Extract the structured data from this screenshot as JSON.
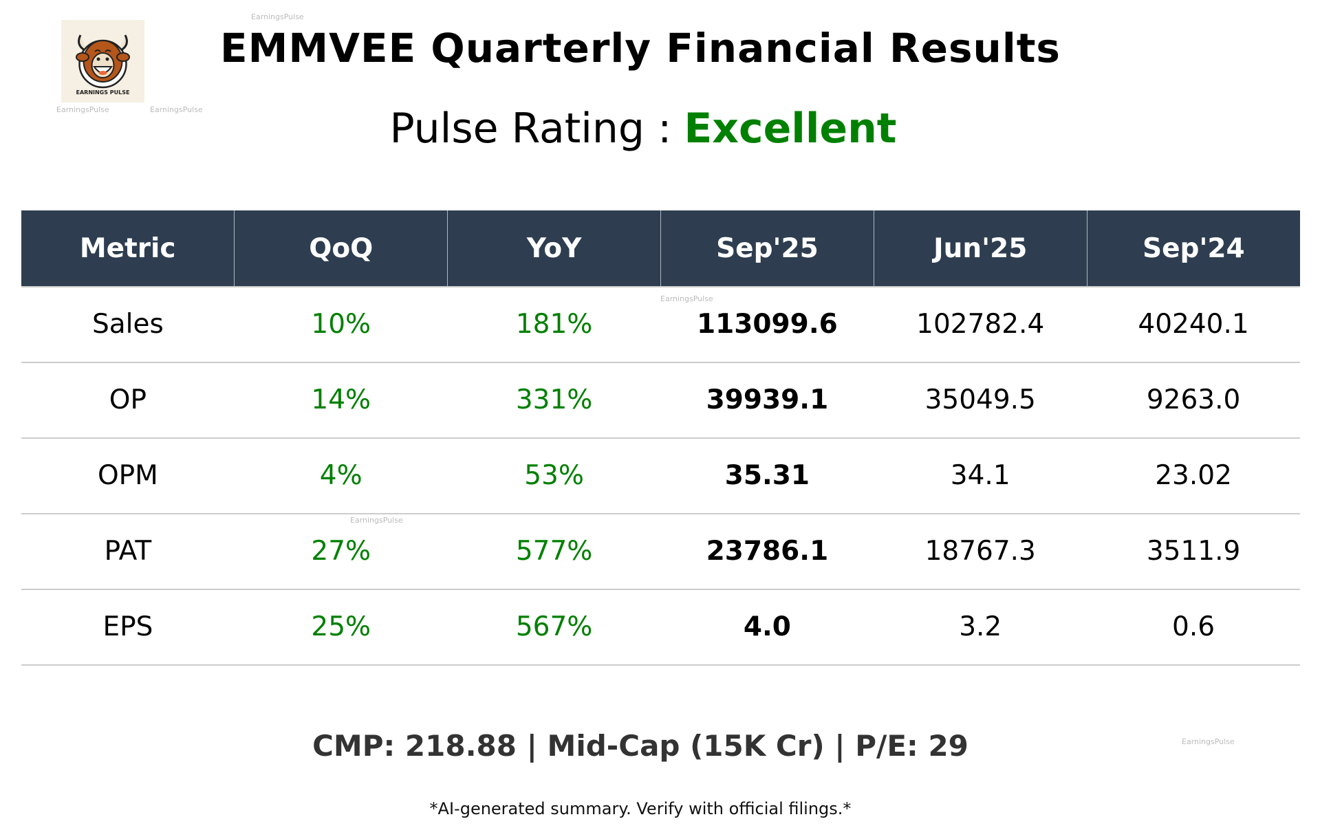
{
  "header": {
    "title": "EMMVEE Quarterly Financial Results",
    "rating_label": "Pulse Rating :",
    "rating_value": "Excellent",
    "rating_color": "#008000"
  },
  "logo": {
    "text": "EARNINGS PULSE"
  },
  "watermark": "EarningsPulse",
  "table": {
    "headers": [
      "Metric",
      "QoQ",
      "YoY",
      "Sep'25",
      "Jun'25",
      "Sep'24"
    ],
    "rows": [
      [
        "Sales",
        "10%",
        "181%",
        "113099.6",
        "102782.4",
        "40240.1"
      ],
      [
        "OP",
        "14%",
        "331%",
        "39939.1",
        "35049.5",
        "9263.0"
      ],
      [
        "OPM",
        "4%",
        "53%",
        "35.31",
        "34.1",
        "23.02"
      ],
      [
        "PAT",
        "27%",
        "577%",
        "23786.1",
        "18767.3",
        "3511.9"
      ],
      [
        "EPS",
        "25%",
        "567%",
        "4.0",
        "3.2",
        "0.6"
      ]
    ],
    "header_color": "#2e3e50",
    "growth_color": "#008000"
  },
  "summary": "CMP: 218.88 | Mid-Cap (15K Cr) | P/E: 29",
  "disclaimer": "*AI-generated summary. Verify with official filings.*"
}
